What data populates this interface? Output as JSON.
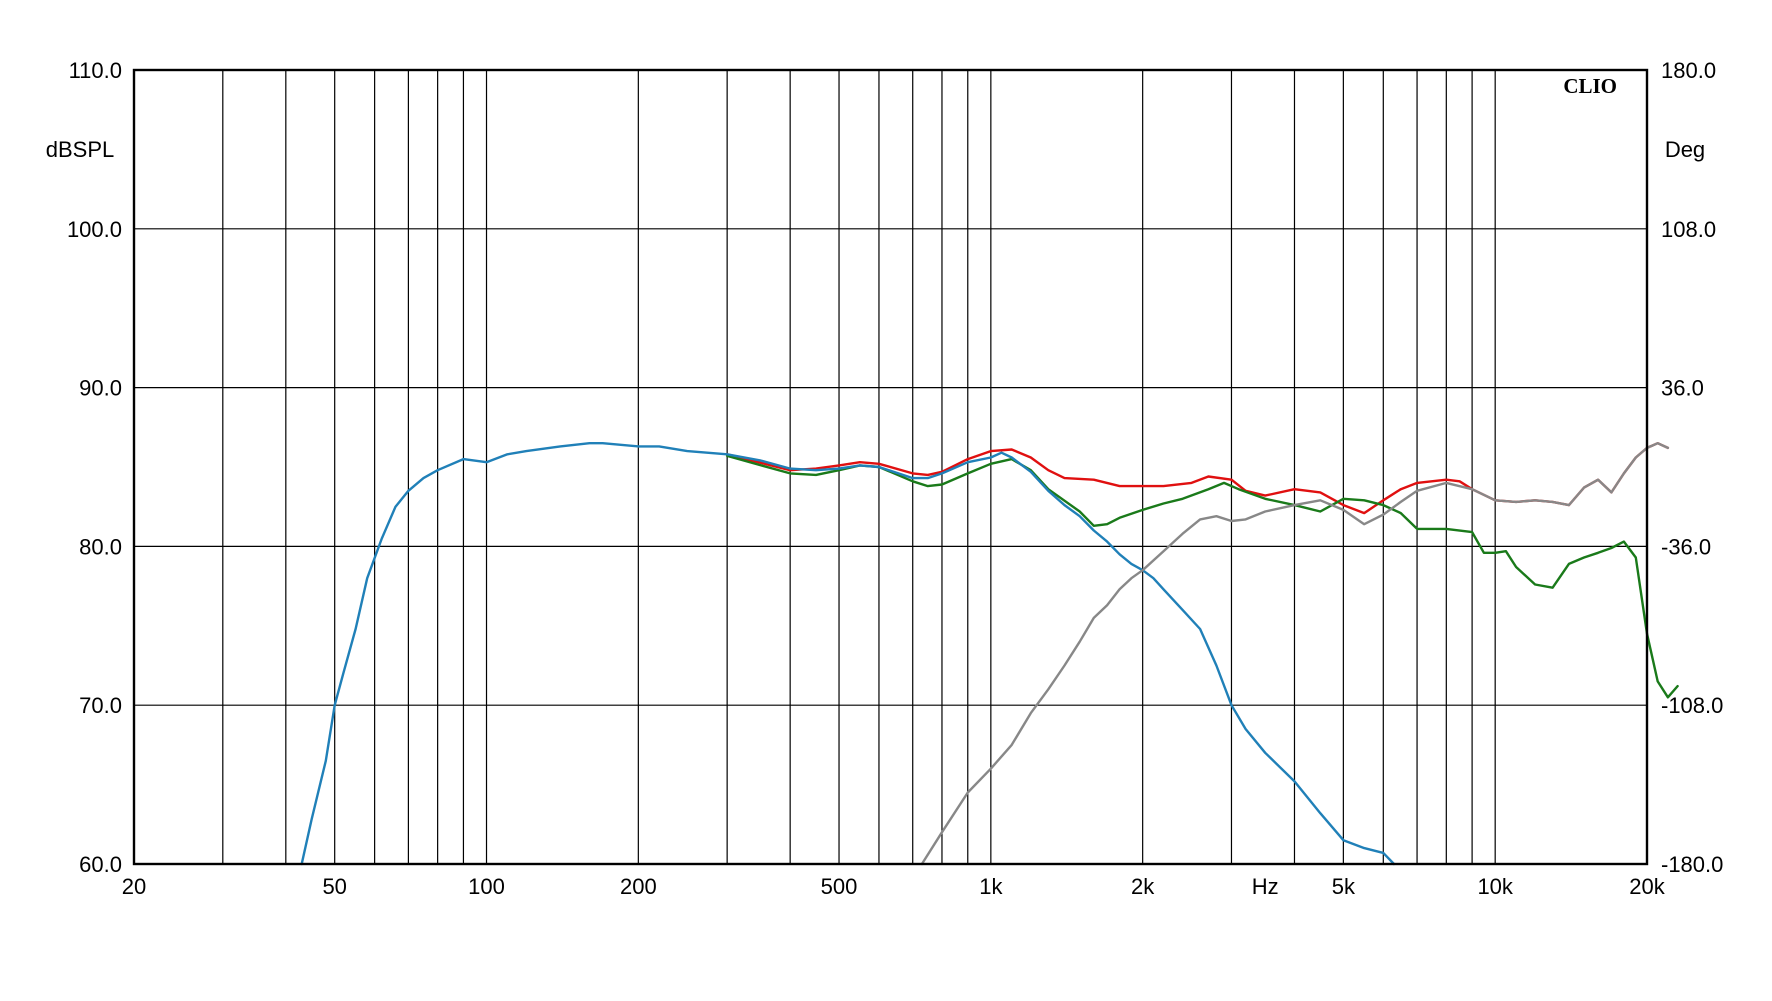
{
  "chart_data": {
    "type": "line",
    "brand": "CLIO",
    "xlabel": "Hz",
    "ylabel": "dBSPL",
    "y2label": "Deg",
    "xscale": "log",
    "xlim": [
      20,
      20000
    ],
    "ylim": [
      60,
      110
    ],
    "y2lim": [
      -180,
      180
    ],
    "grid": true,
    "x_ticks": [
      {
        "value": 20,
        "label": "20"
      },
      {
        "value": 50,
        "label": "50"
      },
      {
        "value": 100,
        "label": "100"
      },
      {
        "value": 200,
        "label": "200"
      },
      {
        "value": 500,
        "label": "500"
      },
      {
        "value": 1000,
        "label": "1k"
      },
      {
        "value": 2000,
        "label": "2k"
      },
      {
        "value": 5000,
        "label": "5k"
      },
      {
        "value": 10000,
        "label": "10k"
      },
      {
        "value": 20000,
        "label": "20k"
      }
    ],
    "y_ticks": [
      "60.0",
      "70.0",
      "80.0",
      "90.0",
      "100.0",
      "110.0"
    ],
    "y2_ticks": [
      "-180.0",
      "-108.0",
      "-36.0",
      "36.0",
      "108.0",
      "180.0"
    ],
    "series": [
      {
        "color": "#e01010",
        "points": [
          [
            300,
            85.8
          ],
          [
            400,
            84.8
          ],
          [
            450,
            84.9
          ],
          [
            500,
            85.1
          ],
          [
            550,
            85.3
          ],
          [
            600,
            85.2
          ],
          [
            700,
            84.6
          ],
          [
            750,
            84.5
          ],
          [
            800,
            84.7
          ],
          [
            900,
            85.5
          ],
          [
            1000,
            86.0
          ],
          [
            1100,
            86.1
          ],
          [
            1200,
            85.6
          ],
          [
            1300,
            84.8
          ],
          [
            1400,
            84.3
          ],
          [
            1600,
            84.2
          ],
          [
            1800,
            83.8
          ],
          [
            2000,
            83.8
          ],
          [
            2200,
            83.8
          ],
          [
            2500,
            84.0
          ],
          [
            2700,
            84.4
          ],
          [
            3000,
            84.2
          ],
          [
            3200,
            83.5
          ],
          [
            3500,
            83.2
          ],
          [
            4000,
            83.6
          ],
          [
            4500,
            83.4
          ],
          [
            5000,
            82.6
          ],
          [
            5500,
            82.1
          ],
          [
            6000,
            82.9
          ],
          [
            6500,
            83.6
          ],
          [
            7000,
            84.0
          ],
          [
            8000,
            84.2
          ],
          [
            8500,
            84.1
          ],
          [
            9000,
            83.6
          ],
          [
            10000,
            82.9
          ],
          [
            11000,
            82.8
          ],
          [
            12000,
            82.9
          ],
          [
            13000,
            82.8
          ],
          [
            14000,
            82.6
          ],
          [
            15000,
            83.7
          ],
          [
            16000,
            84.2
          ],
          [
            17000,
            83.4
          ],
          [
            18000,
            84.6
          ],
          [
            19000,
            85.6
          ],
          [
            20000,
            86.2
          ],
          [
            21000,
            86.5
          ],
          [
            22000,
            86.2
          ]
        ]
      },
      {
        "color": "#1a7a1a",
        "points": [
          [
            300,
            85.7
          ],
          [
            400,
            84.6
          ],
          [
            450,
            84.5
          ],
          [
            500,
            84.8
          ],
          [
            550,
            85.1
          ],
          [
            600,
            85.0
          ],
          [
            700,
            84.1
          ],
          [
            750,
            83.8
          ],
          [
            800,
            83.9
          ],
          [
            900,
            84.6
          ],
          [
            1000,
            85.2
          ],
          [
            1100,
            85.5
          ],
          [
            1200,
            84.8
          ],
          [
            1300,
            83.6
          ],
          [
            1500,
            82.2
          ],
          [
            1600,
            81.3
          ],
          [
            1700,
            81.4
          ],
          [
            1800,
            81.8
          ],
          [
            2000,
            82.3
          ],
          [
            2200,
            82.7
          ],
          [
            2400,
            83.0
          ],
          [
            2700,
            83.6
          ],
          [
            2900,
            84.0
          ],
          [
            3100,
            83.6
          ],
          [
            3500,
            83.0
          ],
          [
            4000,
            82.6
          ],
          [
            4500,
            82.2
          ],
          [
            5000,
            83.0
          ],
          [
            5500,
            82.9
          ],
          [
            6000,
            82.6
          ],
          [
            6500,
            82.1
          ],
          [
            7000,
            81.1
          ],
          [
            8000,
            81.1
          ],
          [
            9000,
            80.9
          ],
          [
            9500,
            79.6
          ],
          [
            10000,
            79.6
          ],
          [
            10500,
            79.7
          ],
          [
            11000,
            78.7
          ],
          [
            12000,
            77.6
          ],
          [
            13000,
            77.4
          ],
          [
            14000,
            78.9
          ],
          [
            15000,
            79.3
          ],
          [
            16000,
            79.6
          ],
          [
            17000,
            79.9
          ],
          [
            18000,
            80.3
          ],
          [
            19000,
            79.3
          ],
          [
            20000,
            74.5
          ],
          [
            21000,
            71.5
          ],
          [
            22000,
            70.5
          ],
          [
            23000,
            71.2
          ]
        ]
      },
      {
        "color": "#2080b8",
        "points": [
          [
            43,
            60
          ],
          [
            45,
            62.8
          ],
          [
            48,
            66.5
          ],
          [
            50,
            70
          ],
          [
            52,
            72
          ],
          [
            55,
            74.8
          ],
          [
            58,
            78
          ],
          [
            62,
            80.5
          ],
          [
            66,
            82.5
          ],
          [
            70,
            83.5
          ],
          [
            75,
            84.3
          ],
          [
            80,
            84.8
          ],
          [
            90,
            85.5
          ],
          [
            100,
            85.3
          ],
          [
            110,
            85.8
          ],
          [
            120,
            86.0
          ],
          [
            140,
            86.3
          ],
          [
            160,
            86.5
          ],
          [
            170,
            86.5
          ],
          [
            200,
            86.3
          ],
          [
            220,
            86.3
          ],
          [
            250,
            86.0
          ],
          [
            300,
            85.8
          ],
          [
            350,
            85.4
          ],
          [
            400,
            84.9
          ],
          [
            450,
            84.8
          ],
          [
            500,
            84.9
          ],
          [
            550,
            85.1
          ],
          [
            600,
            85.0
          ],
          [
            700,
            84.3
          ],
          [
            750,
            84.3
          ],
          [
            800,
            84.6
          ],
          [
            900,
            85.3
          ],
          [
            1000,
            85.6
          ],
          [
            1050,
            85.9
          ],
          [
            1100,
            85.6
          ],
          [
            1200,
            84.7
          ],
          [
            1300,
            83.5
          ],
          [
            1400,
            82.6
          ],
          [
            1500,
            81.9
          ],
          [
            1600,
            81.0
          ],
          [
            1700,
            80.3
          ],
          [
            1800,
            79.5
          ],
          [
            1900,
            78.9
          ],
          [
            2000,
            78.5
          ],
          [
            2100,
            78.0
          ],
          [
            2200,
            77.3
          ],
          [
            2400,
            76.0
          ],
          [
            2600,
            74.8
          ],
          [
            2800,
            72.5
          ],
          [
            3000,
            70.0
          ],
          [
            3200,
            68.5
          ],
          [
            3500,
            67.0
          ],
          [
            4000,
            65.2
          ],
          [
            4500,
            63.2
          ],
          [
            5000,
            61.5
          ],
          [
            5500,
            61.0
          ],
          [
            6000,
            60.7
          ],
          [
            6300,
            60
          ]
        ]
      },
      {
        "color": "#888888",
        "points": [
          [
            730,
            60
          ],
          [
            800,
            62
          ],
          [
            900,
            64.5
          ],
          [
            1000,
            66
          ],
          [
            1100,
            67.5
          ],
          [
            1200,
            69.5
          ],
          [
            1300,
            71
          ],
          [
            1400,
            72.5
          ],
          [
            1500,
            74
          ],
          [
            1600,
            75.5
          ],
          [
            1700,
            76.3
          ],
          [
            1800,
            77.3
          ],
          [
            1900,
            78
          ],
          [
            2000,
            78.5
          ],
          [
            2200,
            79.7
          ],
          [
            2400,
            80.8
          ],
          [
            2600,
            81.7
          ],
          [
            2800,
            81.9
          ],
          [
            3000,
            81.6
          ],
          [
            3200,
            81.7
          ],
          [
            3500,
            82.2
          ],
          [
            4000,
            82.6
          ],
          [
            4500,
            82.9
          ],
          [
            5000,
            82.3
          ],
          [
            5500,
            81.4
          ],
          [
            6000,
            82.0
          ],
          [
            6500,
            82.8
          ],
          [
            7000,
            83.5
          ],
          [
            8000,
            84.0
          ],
          [
            9000,
            83.6
          ],
          [
            10000,
            82.9
          ],
          [
            11000,
            82.8
          ],
          [
            12000,
            82.9
          ],
          [
            13000,
            82.8
          ],
          [
            14000,
            82.6
          ],
          [
            15000,
            83.7
          ],
          [
            16000,
            84.2
          ],
          [
            17000,
            83.4
          ],
          [
            18000,
            84.6
          ],
          [
            19000,
            85.6
          ],
          [
            20000,
            86.2
          ],
          [
            21000,
            86.5
          ],
          [
            22000,
            86.2
          ]
        ]
      }
    ]
  }
}
